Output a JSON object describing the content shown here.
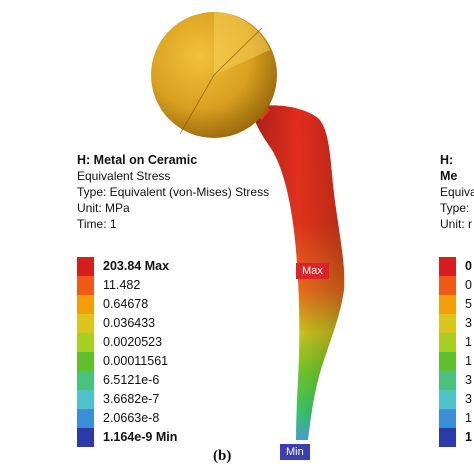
{
  "panel_left": {
    "title": "H: Metal on Ceramic",
    "line1": "Equivalent Stress",
    "line2": "Type: Equivalent (von-Mises) Stress",
    "line3": "Unit: MPa",
    "line4": "Time: 1",
    "legend": [
      {
        "label": "203.84 Max",
        "color": "#d71e1e",
        "bold": true
      },
      {
        "label": "11.482",
        "color": "#f05a16",
        "bold": false
      },
      {
        "label": "0.64678",
        "color": "#f59e0b",
        "bold": false
      },
      {
        "label": "0.036433",
        "color": "#d9c51c",
        "bold": false
      },
      {
        "label": "0.0020523",
        "color": "#a8cf24",
        "bold": false
      },
      {
        "label": "0.00011561",
        "color": "#5fbf2c",
        "bold": false
      },
      {
        "label": "6.5121e-6",
        "color": "#49c27e",
        "bold": false
      },
      {
        "label": "3.6682e-7",
        "color": "#4fc3c9",
        "bold": false
      },
      {
        "label": "2.0663e-8",
        "color": "#3b8fd8",
        "bold": false
      },
      {
        "label": "1.164e-9 Min",
        "color": "#2b3aa8",
        "bold": true
      }
    ],
    "max_marker": "Max",
    "min_marker": "Min",
    "caption": "(b)"
  },
  "panel_right": {
    "title": "H: Me",
    "line1": "Equivale",
    "line2": "Type:",
    "line3": "Unit: r",
    "legend": [
      {
        "label": "0",
        "color": "#d71e1e",
        "bold": true
      },
      {
        "label": "0",
        "color": "#f05a16",
        "bold": false
      },
      {
        "label": "5",
        "color": "#f59e0b",
        "bold": false
      },
      {
        "label": "3",
        "color": "#d9c51c",
        "bold": false
      },
      {
        "label": "1",
        "color": "#a8cf24",
        "bold": false
      },
      {
        "label": "1",
        "color": "#5fbf2c",
        "bold": false
      },
      {
        "label": "3",
        "color": "#49c27e",
        "bold": false
      },
      {
        "label": "3",
        "color": "#4fc3c9",
        "bold": false
      },
      {
        "label": "1",
        "color": "#3b8fd8",
        "bold": false
      },
      {
        "label": "1",
        "color": "#2b3aa8",
        "bold": true
      }
    ]
  }
}
